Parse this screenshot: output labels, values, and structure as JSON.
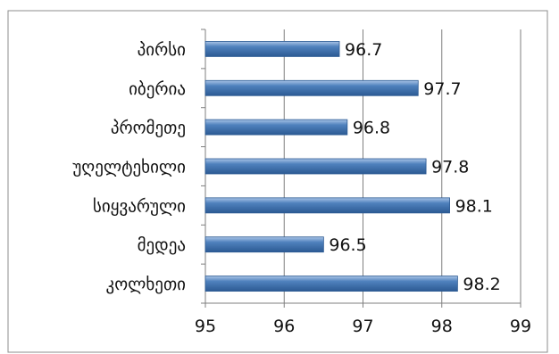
{
  "chart_data": {
    "type": "bar",
    "orientation": "horizontal",
    "title": "",
    "xlabel": "",
    "ylabel": "",
    "categories": [
      "პირსი",
      "იბერია",
      "პრომეთე",
      "უღელტეხილი",
      "სიყვარული",
      "მედეა",
      "კოლხეთი"
    ],
    "values": [
      96.7,
      97.7,
      96.8,
      97.8,
      98.1,
      96.5,
      98.2
    ],
    "data_labels": [
      "96.7",
      "97.7",
      "96.8",
      "97.8",
      "98.1",
      "96.5",
      "98.2"
    ],
    "xlim": [
      95,
      99
    ],
    "xticks": [
      "95",
      "96",
      "97",
      "98",
      "99"
    ],
    "grid": "vertical",
    "legend": "none",
    "bar_color": "#4f81bd",
    "bar_color_dark": "#2c5a93",
    "bar_color_light": "#a9c4e6"
  }
}
